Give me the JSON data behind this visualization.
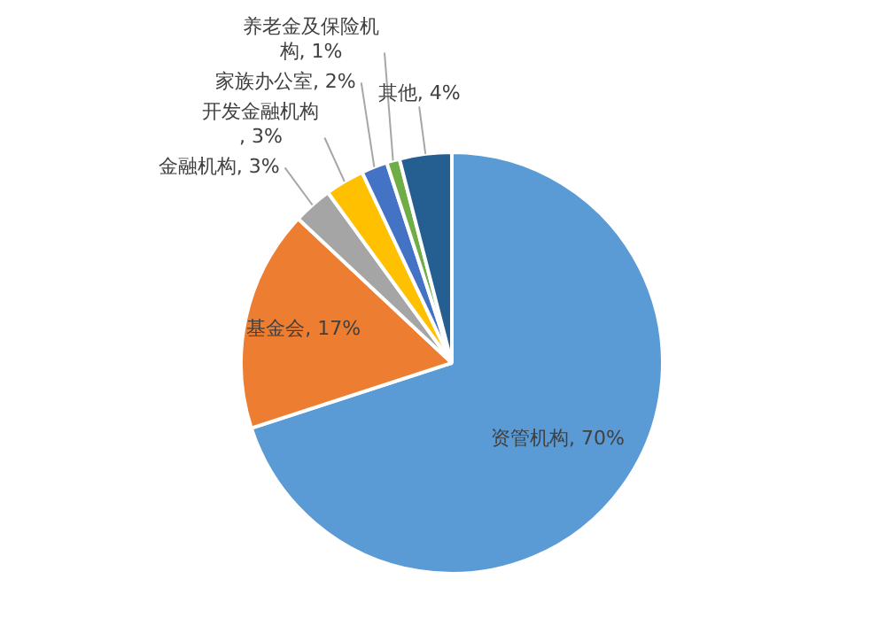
{
  "chart_data": {
    "type": "pie",
    "categories": [
      "资管机构",
      "基金会",
      "金融机构",
      "开发金融机构",
      "家族办公室",
      "养老金及保险机构",
      "其他"
    ],
    "values": [
      70,
      17,
      3,
      3,
      2,
      1,
      4
    ],
    "colors": [
      "#5b9bd5",
      "#ed7d31",
      "#a5a5a5",
      "#ffc000",
      "#4472c4",
      "#70ad47",
      "#255e91"
    ],
    "value_labels": [
      ", 70%",
      ", 17%",
      ", 3%",
      ", 3%",
      ", 2%",
      ", 1%",
      ", 4%"
    ],
    "legend": false
  }
}
